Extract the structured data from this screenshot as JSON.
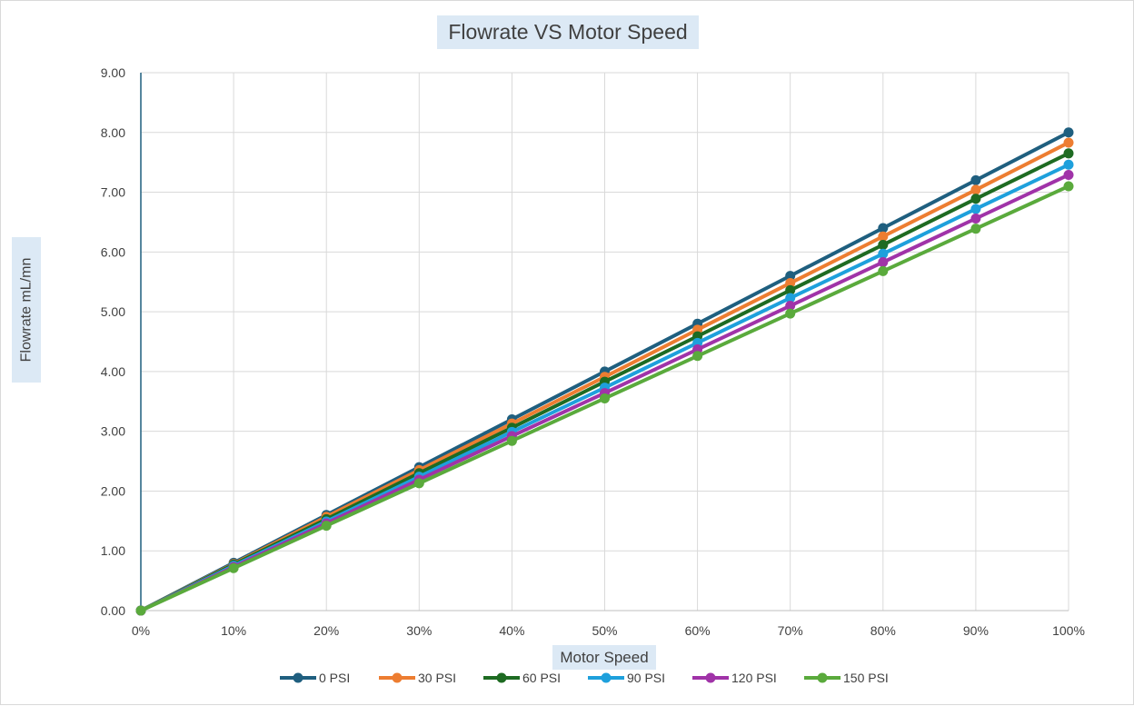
{
  "chart_data": {
    "type": "line",
    "title": "Flowrate VS Motor Speed",
    "xlabel": "Motor Speed",
    "ylabel": "Flowrate mL/mn",
    "x": [
      0,
      10,
      20,
      30,
      40,
      50,
      60,
      70,
      80,
      90,
      100
    ],
    "x_tick_labels": [
      "0%",
      "10%",
      "20%",
      "30%",
      "40%",
      "50%",
      "60%",
      "70%",
      "80%",
      "90%",
      "100%"
    ],
    "y_ticks": [
      0,
      1,
      2,
      3,
      4,
      5,
      6,
      7,
      8,
      9
    ],
    "y_tick_labels": [
      "0.00",
      "1.00",
      "2.00",
      "3.00",
      "4.00",
      "5.00",
      "6.00",
      "7.00",
      "8.00",
      "9.00"
    ],
    "xlim": [
      0,
      100
    ],
    "ylim": [
      0,
      9
    ],
    "grid": true,
    "legend_position": "bottom",
    "series": [
      {
        "name": "0 PSI",
        "color": "#1f5f7f",
        "values": [
          0,
          0.8,
          1.6,
          2.4,
          3.2,
          4.0,
          4.8,
          5.6,
          6.4,
          7.2,
          8.0
        ]
      },
      {
        "name": "30 PSI",
        "color": "#ed7d31",
        "values": [
          0,
          0.78,
          1.57,
          2.35,
          3.13,
          3.91,
          4.7,
          5.48,
          6.26,
          7.04,
          7.83
        ]
      },
      {
        "name": "60 PSI",
        "color": "#1e6b22",
        "values": [
          0,
          0.77,
          1.53,
          2.3,
          3.06,
          3.83,
          4.59,
          5.36,
          6.12,
          6.89,
          7.65
        ]
      },
      {
        "name": "90 PSI",
        "color": "#1ea0dc",
        "values": [
          0,
          0.75,
          1.49,
          2.24,
          2.99,
          3.73,
          4.48,
          5.23,
          5.97,
          6.72,
          7.46
        ]
      },
      {
        "name": "120 PSI",
        "color": "#a033a8",
        "values": [
          0,
          0.73,
          1.46,
          2.19,
          2.92,
          3.64,
          4.37,
          5.1,
          5.83,
          6.56,
          7.29
        ]
      },
      {
        "name": "150 PSI",
        "color": "#5aaa3c",
        "values": [
          0,
          0.71,
          1.42,
          2.13,
          2.84,
          3.55,
          4.26,
          4.97,
          5.68,
          6.39,
          7.1
        ]
      }
    ]
  }
}
